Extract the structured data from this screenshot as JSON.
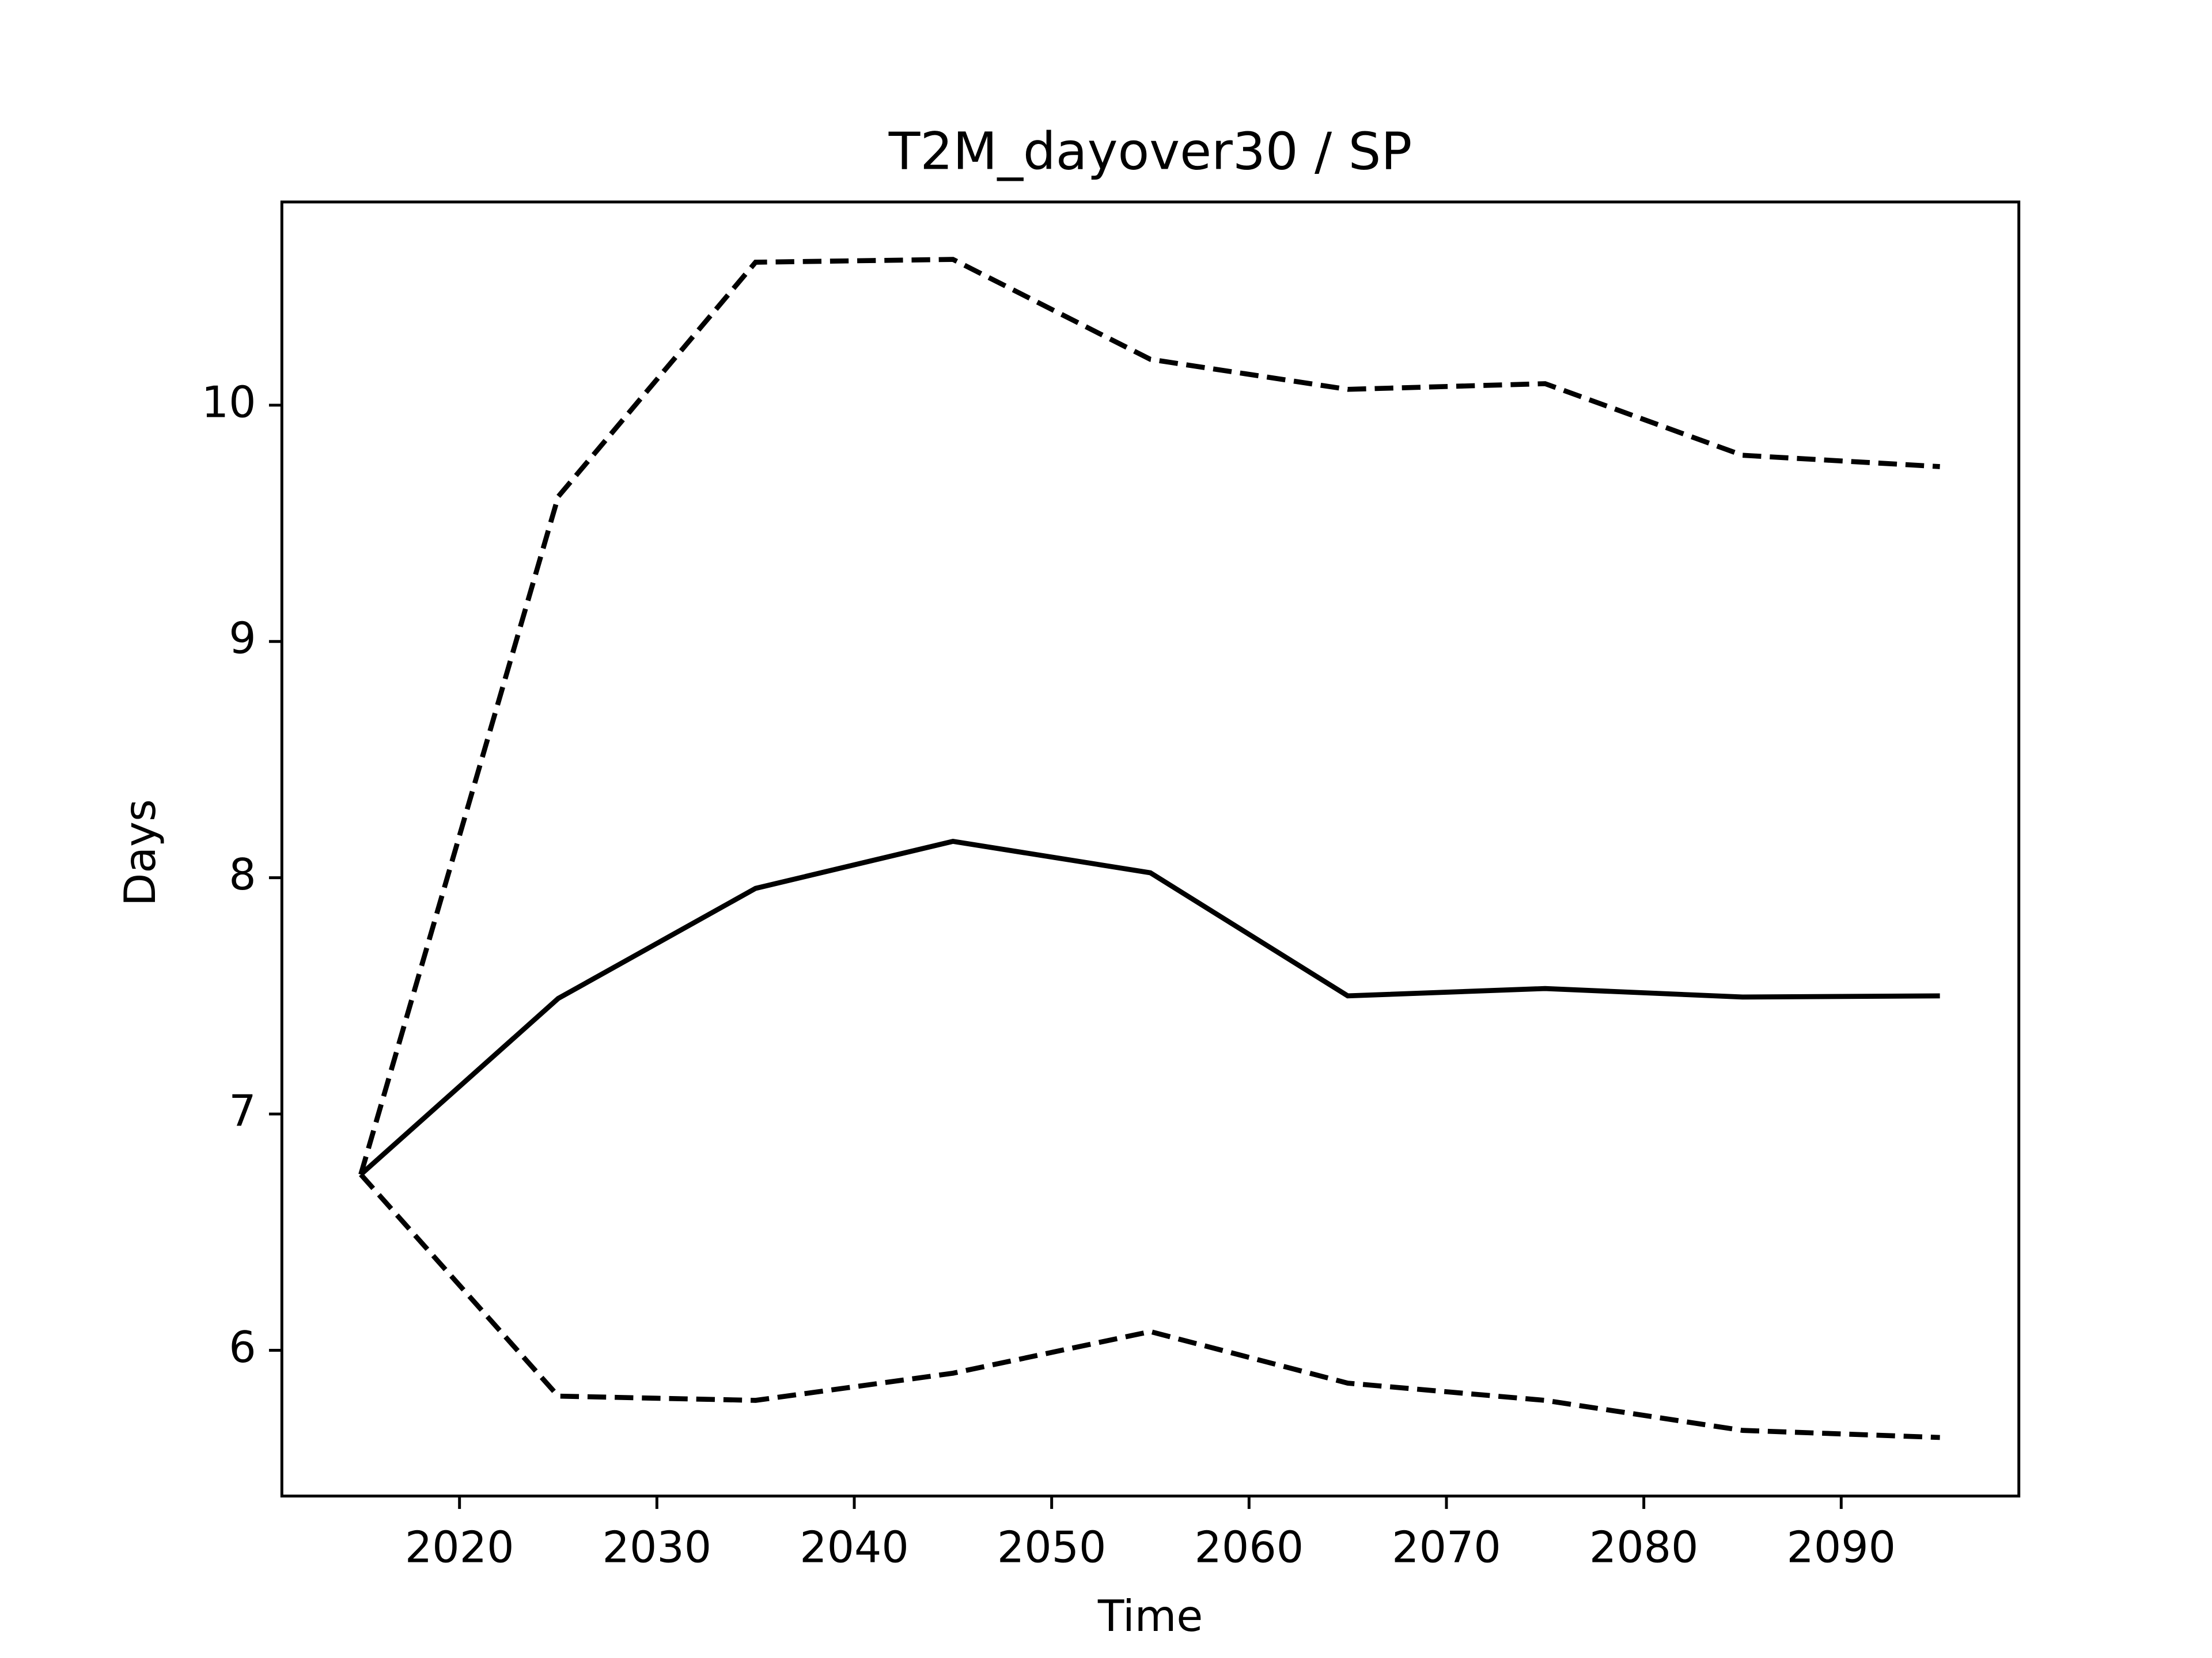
{
  "chart_data": {
    "type": "line",
    "title": "T2M_dayover30 / SP",
    "x_label": "Time",
    "y_label": "Days",
    "x": [
      2015,
      2025,
      2035,
      2045,
      2055,
      2065,
      2075,
      2085,
      2095
    ],
    "series": [
      {
        "color": "#000000",
        "style": "dashed",
        "values": [
          6.744,
          9.613,
          10.605,
          10.617,
          10.194,
          10.067,
          10.091,
          9.788,
          9.74
        ]
      },
      {
        "color": "#000000",
        "style": "solid",
        "values": [
          6.744,
          7.489,
          7.955,
          8.154,
          8.021,
          7.5,
          7.531,
          7.495,
          7.5
        ]
      },
      {
        "color": "#000000",
        "style": "dashed",
        "values": [
          6.744,
          5.806,
          5.788,
          5.903,
          6.079,
          5.861,
          5.788,
          5.661,
          5.631
        ]
      }
    ],
    "xlim": [
      2011,
      2099
    ],
    "xticks": [
      2020,
      2030,
      2040,
      2050,
      2060,
      2070,
      2080,
      2090
    ],
    "ylim": [
      5.383,
      10.86
    ],
    "yticks": [
      6,
      7,
      8,
      9,
      10
    ],
    "grid": false
  }
}
